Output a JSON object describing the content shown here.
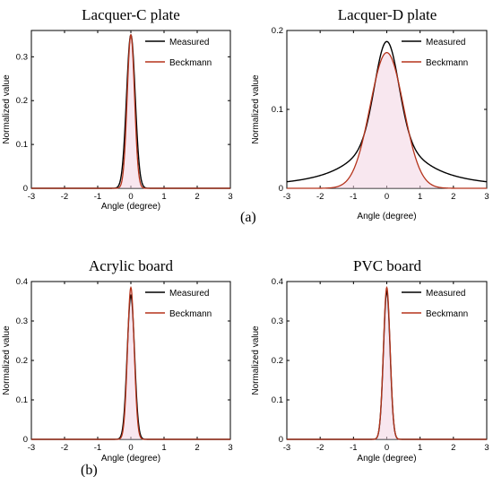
{
  "colors": {
    "measured": "#000000",
    "beckmann": "#b5341c",
    "axis": "#000000",
    "fill": "#f3d3e2",
    "blue_label": "#2b3a8a"
  },
  "panel_tags": [
    "(a)",
    "(b)"
  ],
  "chart_data": [
    {
      "type": "line",
      "title": "Lacquer-C plate",
      "xlabel": "Angle (degree)",
      "ylabel": "Normalized value",
      "xlim": [
        -3,
        3
      ],
      "ylim": [
        0,
        0.36
      ],
      "xticks": [
        "-3",
        "-2",
        "-1",
        "0",
        "1",
        "2",
        "3"
      ],
      "yticks": [
        "0",
        "0.1",
        "0.2",
        "0.3"
      ],
      "legend_position": "top-right",
      "series": [
        {
          "name": "Measured",
          "color": "#000000",
          "shape": "gaussian",
          "peak": 0.35,
          "sigma": 0.13
        },
        {
          "name": "Beckmann",
          "color": "#b5341c",
          "shape": "gaussian",
          "peak": 0.35,
          "sigma": 0.11
        }
      ]
    },
    {
      "type": "line",
      "title": "Lacquer-D plate",
      "xlabel": "Angle (degree)",
      "ylabel": "Normalized value",
      "xlim": [
        -3,
        3
      ],
      "ylim": [
        0,
        0.2
      ],
      "xticks": [
        "-3",
        "-2",
        "-1",
        "0",
        "1",
        "2",
        "3"
      ],
      "yticks": [
        "0",
        "0.1",
        "0.2"
      ],
      "legend_position": "top-right",
      "series": [
        {
          "name": "Measured",
          "color": "#000000",
          "shape": "mixed",
          "peak": 0.186,
          "sigma": 0.35,
          "tail": 0.07,
          "tail_width": 1.1
        },
        {
          "name": "Beckmann",
          "color": "#b5341c",
          "shape": "gaussian",
          "peak": 0.172,
          "sigma": 0.5
        }
      ]
    },
    {
      "type": "line",
      "title": "Acrylic board",
      "xlabel": "Angle (degree)",
      "ylabel": "Normalized value",
      "xlim": [
        -3,
        3
      ],
      "ylim": [
        0,
        0.4
      ],
      "xticks": [
        "-3",
        "-2",
        "-1",
        "0",
        "1",
        "2",
        "3"
      ],
      "yticks": [
        "0",
        "0.1",
        "0.2",
        "0.3",
        "0.4"
      ],
      "legend_position": "top-right",
      "series": [
        {
          "name": "Measured",
          "color": "#000000",
          "shape": "gaussian",
          "peak": 0.365,
          "sigma": 0.11
        },
        {
          "name": "Beckmann",
          "color": "#b5341c",
          "shape": "gaussian",
          "peak": 0.385,
          "sigma": 0.1
        }
      ]
    },
    {
      "type": "line",
      "title": "PVC board",
      "xlabel": "Angle (degree)",
      "ylabel": "Normalized value",
      "xlim": [
        -3,
        3
      ],
      "ylim": [
        0,
        0.4
      ],
      "xticks": [
        "-3",
        "-2",
        "-1",
        "0",
        "1",
        "2",
        "3"
      ],
      "yticks": [
        "0",
        "0.1",
        "0.2",
        "0.3",
        "0.4"
      ],
      "legend_position": "top-right",
      "series": [
        {
          "name": "Measured",
          "color": "#000000",
          "shape": "gaussian",
          "peak": 0.375,
          "sigma": 0.1
        },
        {
          "name": "Beckmann",
          "color": "#b5341c",
          "shape": "gaussian",
          "peak": 0.385,
          "sigma": 0.1
        }
      ]
    }
  ]
}
